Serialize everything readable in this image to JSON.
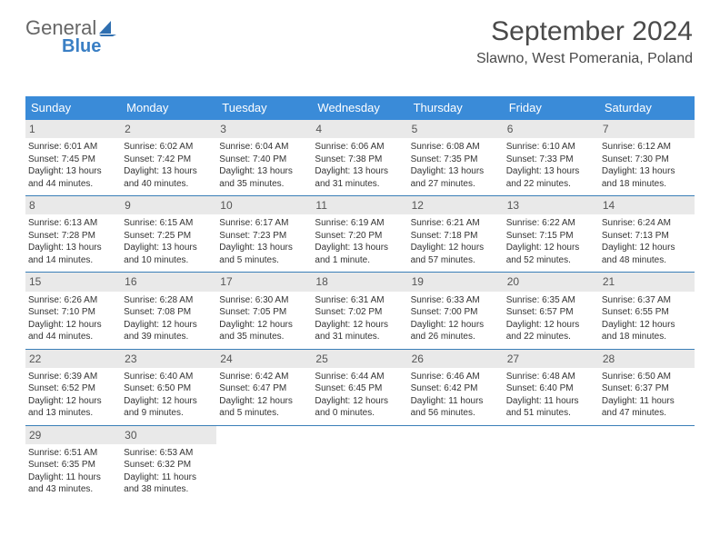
{
  "brand": {
    "word1": "General",
    "word2": "Blue"
  },
  "header": {
    "month": "September 2024",
    "location": "Slawno, West Pomerania, Poland"
  },
  "colors": {
    "header_bg": "#3a8bd8",
    "header_text": "#ffffff",
    "daynum_bg": "#e9e9e9",
    "week_border": "#3a7fb8",
    "brand_accent": "#3a7fc4"
  },
  "weekdays": [
    "Sunday",
    "Monday",
    "Tuesday",
    "Wednesday",
    "Thursday",
    "Friday",
    "Saturday"
  ],
  "weeks": [
    [
      {
        "n": "1",
        "sr": "Sunrise: 6:01 AM",
        "ss": "Sunset: 7:45 PM",
        "d1": "Daylight: 13 hours",
        "d2": "and 44 minutes."
      },
      {
        "n": "2",
        "sr": "Sunrise: 6:02 AM",
        "ss": "Sunset: 7:42 PM",
        "d1": "Daylight: 13 hours",
        "d2": "and 40 minutes."
      },
      {
        "n": "3",
        "sr": "Sunrise: 6:04 AM",
        "ss": "Sunset: 7:40 PM",
        "d1": "Daylight: 13 hours",
        "d2": "and 35 minutes."
      },
      {
        "n": "4",
        "sr": "Sunrise: 6:06 AM",
        "ss": "Sunset: 7:38 PM",
        "d1": "Daylight: 13 hours",
        "d2": "and 31 minutes."
      },
      {
        "n": "5",
        "sr": "Sunrise: 6:08 AM",
        "ss": "Sunset: 7:35 PM",
        "d1": "Daylight: 13 hours",
        "d2": "and 27 minutes."
      },
      {
        "n": "6",
        "sr": "Sunrise: 6:10 AM",
        "ss": "Sunset: 7:33 PM",
        "d1": "Daylight: 13 hours",
        "d2": "and 22 minutes."
      },
      {
        "n": "7",
        "sr": "Sunrise: 6:12 AM",
        "ss": "Sunset: 7:30 PM",
        "d1": "Daylight: 13 hours",
        "d2": "and 18 minutes."
      }
    ],
    [
      {
        "n": "8",
        "sr": "Sunrise: 6:13 AM",
        "ss": "Sunset: 7:28 PM",
        "d1": "Daylight: 13 hours",
        "d2": "and 14 minutes."
      },
      {
        "n": "9",
        "sr": "Sunrise: 6:15 AM",
        "ss": "Sunset: 7:25 PM",
        "d1": "Daylight: 13 hours",
        "d2": "and 10 minutes."
      },
      {
        "n": "10",
        "sr": "Sunrise: 6:17 AM",
        "ss": "Sunset: 7:23 PM",
        "d1": "Daylight: 13 hours",
        "d2": "and 5 minutes."
      },
      {
        "n": "11",
        "sr": "Sunrise: 6:19 AM",
        "ss": "Sunset: 7:20 PM",
        "d1": "Daylight: 13 hours",
        "d2": "and 1 minute."
      },
      {
        "n": "12",
        "sr": "Sunrise: 6:21 AM",
        "ss": "Sunset: 7:18 PM",
        "d1": "Daylight: 12 hours",
        "d2": "and 57 minutes."
      },
      {
        "n": "13",
        "sr": "Sunrise: 6:22 AM",
        "ss": "Sunset: 7:15 PM",
        "d1": "Daylight: 12 hours",
        "d2": "and 52 minutes."
      },
      {
        "n": "14",
        "sr": "Sunrise: 6:24 AM",
        "ss": "Sunset: 7:13 PM",
        "d1": "Daylight: 12 hours",
        "d2": "and 48 minutes."
      }
    ],
    [
      {
        "n": "15",
        "sr": "Sunrise: 6:26 AM",
        "ss": "Sunset: 7:10 PM",
        "d1": "Daylight: 12 hours",
        "d2": "and 44 minutes."
      },
      {
        "n": "16",
        "sr": "Sunrise: 6:28 AM",
        "ss": "Sunset: 7:08 PM",
        "d1": "Daylight: 12 hours",
        "d2": "and 39 minutes."
      },
      {
        "n": "17",
        "sr": "Sunrise: 6:30 AM",
        "ss": "Sunset: 7:05 PM",
        "d1": "Daylight: 12 hours",
        "d2": "and 35 minutes."
      },
      {
        "n": "18",
        "sr": "Sunrise: 6:31 AM",
        "ss": "Sunset: 7:02 PM",
        "d1": "Daylight: 12 hours",
        "d2": "and 31 minutes."
      },
      {
        "n": "19",
        "sr": "Sunrise: 6:33 AM",
        "ss": "Sunset: 7:00 PM",
        "d1": "Daylight: 12 hours",
        "d2": "and 26 minutes."
      },
      {
        "n": "20",
        "sr": "Sunrise: 6:35 AM",
        "ss": "Sunset: 6:57 PM",
        "d1": "Daylight: 12 hours",
        "d2": "and 22 minutes."
      },
      {
        "n": "21",
        "sr": "Sunrise: 6:37 AM",
        "ss": "Sunset: 6:55 PM",
        "d1": "Daylight: 12 hours",
        "d2": "and 18 minutes."
      }
    ],
    [
      {
        "n": "22",
        "sr": "Sunrise: 6:39 AM",
        "ss": "Sunset: 6:52 PM",
        "d1": "Daylight: 12 hours",
        "d2": "and 13 minutes."
      },
      {
        "n": "23",
        "sr": "Sunrise: 6:40 AM",
        "ss": "Sunset: 6:50 PM",
        "d1": "Daylight: 12 hours",
        "d2": "and 9 minutes."
      },
      {
        "n": "24",
        "sr": "Sunrise: 6:42 AM",
        "ss": "Sunset: 6:47 PM",
        "d1": "Daylight: 12 hours",
        "d2": "and 5 minutes."
      },
      {
        "n": "25",
        "sr": "Sunrise: 6:44 AM",
        "ss": "Sunset: 6:45 PM",
        "d1": "Daylight: 12 hours",
        "d2": "and 0 minutes."
      },
      {
        "n": "26",
        "sr": "Sunrise: 6:46 AM",
        "ss": "Sunset: 6:42 PM",
        "d1": "Daylight: 11 hours",
        "d2": "and 56 minutes."
      },
      {
        "n": "27",
        "sr": "Sunrise: 6:48 AM",
        "ss": "Sunset: 6:40 PM",
        "d1": "Daylight: 11 hours",
        "d2": "and 51 minutes."
      },
      {
        "n": "28",
        "sr": "Sunrise: 6:50 AM",
        "ss": "Sunset: 6:37 PM",
        "d1": "Daylight: 11 hours",
        "d2": "and 47 minutes."
      }
    ],
    [
      {
        "n": "29",
        "sr": "Sunrise: 6:51 AM",
        "ss": "Sunset: 6:35 PM",
        "d1": "Daylight: 11 hours",
        "d2": "and 43 minutes."
      },
      {
        "n": "30",
        "sr": "Sunrise: 6:53 AM",
        "ss": "Sunset: 6:32 PM",
        "d1": "Daylight: 11 hours",
        "d2": "and 38 minutes."
      },
      {
        "empty": true
      },
      {
        "empty": true
      },
      {
        "empty": true
      },
      {
        "empty": true
      },
      {
        "empty": true
      }
    ]
  ]
}
